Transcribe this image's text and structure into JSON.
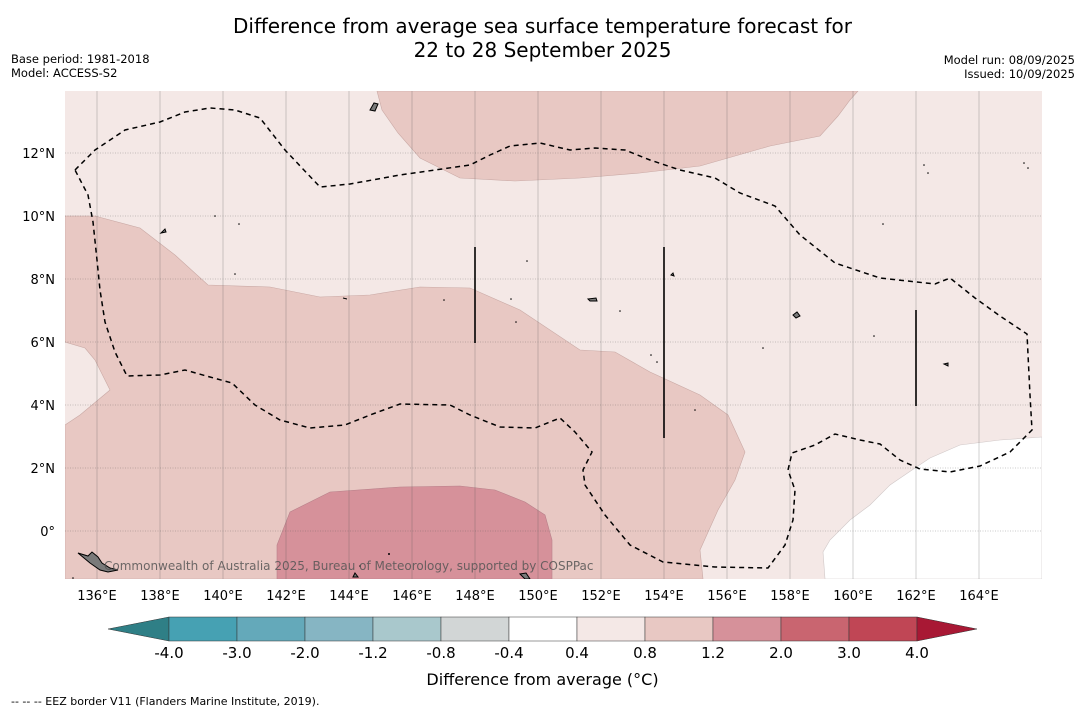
{
  "title": {
    "line1": "Difference from average sea surface temperature forecast for",
    "line2": "22 to 28 September 2025"
  },
  "meta_left": {
    "base_period": "Base period: 1981-2018",
    "model": "Model: ACCESS-S2"
  },
  "meta_right": {
    "model_run": "Model run: 08/09/2025",
    "issued": "Issued: 10/09/2025"
  },
  "map": {
    "lon_range_E": [
      135,
      166
    ],
    "lat_range_N": [
      -1.5,
      14
    ],
    "lon_ticks": [
      "136°E",
      "138°E",
      "140°E",
      "142°E",
      "144°E",
      "146°E",
      "148°E",
      "150°E",
      "152°E",
      "154°E",
      "156°E",
      "158°E",
      "160°E",
      "162°E",
      "164°E"
    ],
    "lat_ticks": [
      "12°N",
      "10°N",
      "8°N",
      "6°N",
      "4°N",
      "2°N",
      "0°"
    ],
    "grid": true,
    "attribution": "Commonwealth of Australia 2025, Bureau of Meteorology, supported by COSPPac",
    "anomaly_levels_shown": [
      {
        "range": "0.4 to 0.8",
        "color": "#f4e8e6"
      },
      {
        "range": "0.8 to 1.2",
        "color": "#e8c8c3"
      },
      {
        "range": "1.2 to 2.0",
        "color": "#d6919a"
      },
      {
        "range": "-0.4 to 0.4",
        "color": "#ffffff"
      }
    ]
  },
  "colorbar": {
    "ticks": [
      "-4.0",
      "-3.0",
      "-2.0",
      "-1.2",
      "-0.8",
      "-0.4",
      "0.4",
      "0.8",
      "1.2",
      "2.0",
      "3.0",
      "4.0"
    ],
    "colors": [
      "#2f7f86",
      "#46a1b3",
      "#64a9ba",
      "#86b5c3",
      "#a9c8cc",
      "#d2d6d6",
      "#ffffff",
      "#f4e8e6",
      "#e8c8c3",
      "#d6919a",
      "#c96570",
      "#c04655",
      "#a81834"
    ],
    "label": "Difference from average (°C)"
  },
  "footnote": "--  --  -- EEZ border V11 (Flanders Marine Institute, 2019)."
}
